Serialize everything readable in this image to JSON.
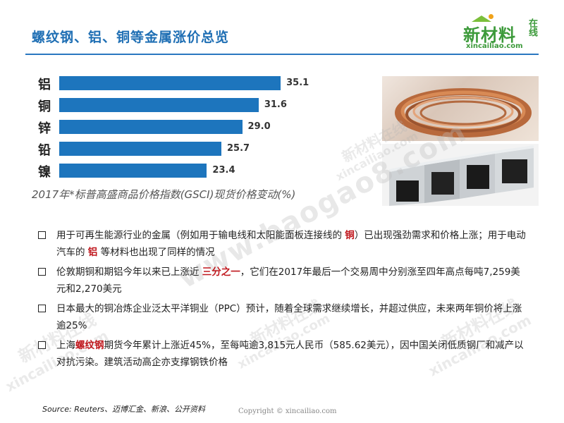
{
  "header": {
    "title": "螺纹钢、铝、铜等金属涨价总览",
    "logo_main": "新材料",
    "logo_side": "在线",
    "logo_url": "xincailiao.com"
  },
  "chart_data": {
    "type": "bar",
    "orientation": "horizontal",
    "categories": [
      "铝",
      "铜",
      "锌",
      "铅",
      "镍"
    ],
    "values": [
      35.1,
      31.6,
      29.0,
      25.7,
      23.4
    ],
    "value_labels": [
      "35.1",
      "31.6",
      "29.0",
      "25.7",
      "23.4"
    ],
    "caption": "2017年*标普高盛商品价格指数(GSCI)现货价格变动(%)",
    "bar_color": "#1d75bd",
    "xlim": [
      0,
      40
    ]
  },
  "bullets": [
    {
      "parts": [
        {
          "t": "用于可再生能源行业的金属（例如用于输电线和太阳能面板连接线的 "
        },
        {
          "t": "铜",
          "hl": true
        },
        {
          "t": "）已出现强劲需求和价格上涨；用于电动汽车的 "
        },
        {
          "t": "铝",
          "hl": true
        },
        {
          "t": " 等材料也出现了同样的情况"
        }
      ]
    },
    {
      "parts": [
        {
          "t": "伦敦期铜和期铝今年以来已上涨近 "
        },
        {
          "t": "三分之一",
          "hl": true
        },
        {
          "t": "，它们在2017年最后一个交易周中分别涨至四年高点每吨7,259美元和2,270美元"
        }
      ]
    },
    {
      "parts": [
        {
          "t": "日本最大的铜冶炼企业泛太平洋铜业（PPC）预计，随着全球需求继续增长，并超过供应，未来两年铜价将上涨逾25%"
        }
      ]
    },
    {
      "parts": [
        {
          "t": "上海"
        },
        {
          "t": "螺纹钢",
          "hl": true
        },
        {
          "t": "期货今年累计上涨近45%，至每吨逾3,815元人民币（585.62美元），因中国关闭低质钢厂和减产以对抗污染。建筑活动高企亦支撑钢铁价格"
        }
      ]
    }
  ],
  "footer": {
    "source": "Source: Reuters、迈博汇金、新浪、公开资料",
    "copyright": "Copyright © xincailiao.com"
  },
  "watermarks": {
    "main": "www.baogao8.com",
    "brand_cn": "新材料在线",
    "brand_url": "xincailiao.com"
  }
}
